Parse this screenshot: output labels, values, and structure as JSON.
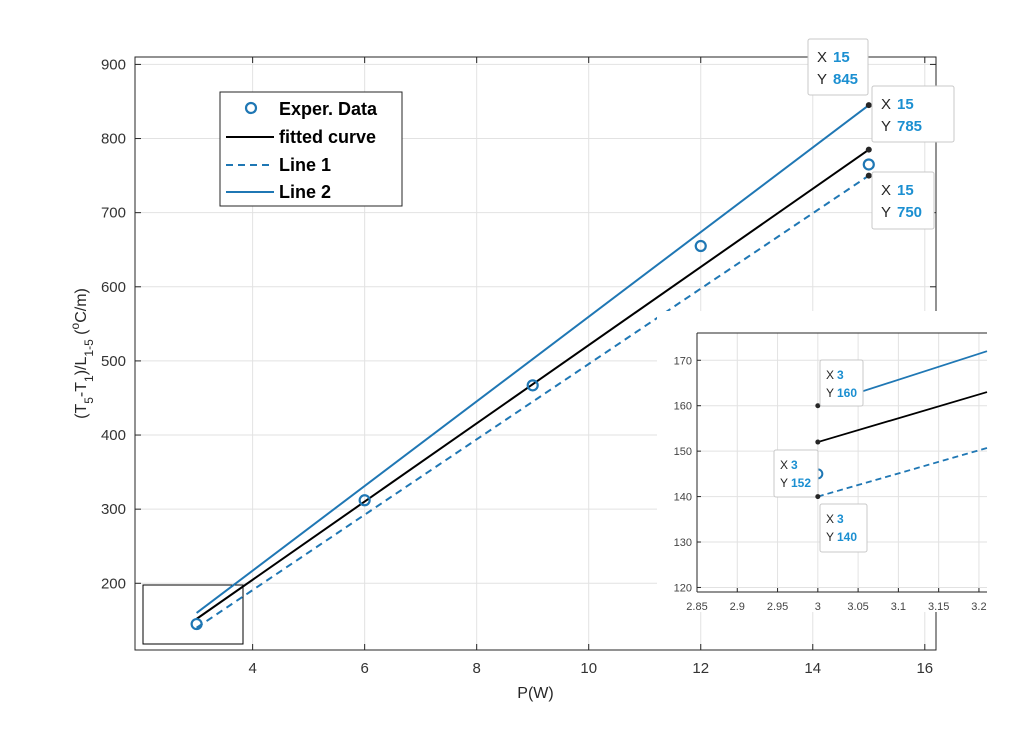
{
  "chart_data": [
    {
      "type": "line",
      "xlabel": "P(W)",
      "ylabel": "(T5-T1)/L1-5 (oC/m)",
      "xlim": [
        1.9,
        16.2
      ],
      "ylim": [
        110,
        910
      ],
      "xticks": [
        4,
        6,
        8,
        10,
        12,
        14,
        16
      ],
      "yticks": [
        200,
        300,
        400,
        500,
        600,
        700,
        800,
        900
      ],
      "grid": true,
      "legend_position": "top-left",
      "series": [
        {
          "name": "Exper. Data",
          "style": "markers",
          "color": "#1f77b4",
          "x": [
            3,
            6,
            9,
            12,
            15
          ],
          "y": [
            145,
            312,
            467,
            655,
            765
          ]
        },
        {
          "name": "fitted curve",
          "style": "solid",
          "color": "#000000",
          "x": [
            3,
            15
          ],
          "y": [
            152,
            785
          ]
        },
        {
          "name": "Line 1",
          "style": "dashed",
          "color": "#1f77b4",
          "x": [
            3,
            15
          ],
          "y": [
            140,
            750
          ]
        },
        {
          "name": "Line 2",
          "style": "solid",
          "color": "#1f77b4",
          "x": [
            3,
            15
          ],
          "y": [
            160,
            845
          ]
        }
      ],
      "datatips": [
        {
          "x_label": "X",
          "x_value": "15",
          "y_label": "Y",
          "y_value": "845",
          "x": 15,
          "y": 845
        },
        {
          "x_label": "X",
          "x_value": "15",
          "y_label": "Y",
          "y_value": "785",
          "x": 15,
          "y": 785
        },
        {
          "x_label": "X",
          "x_value": "15",
          "y_label": "Y",
          "y_value": "750",
          "x": 15,
          "y": 750
        }
      ]
    },
    {
      "type": "line",
      "role": "inset",
      "xlim": [
        2.85,
        3.21
      ],
      "ylim": [
        119,
        176
      ],
      "xticks": [
        2.85,
        2.9,
        2.95,
        3,
        3.05,
        3.1,
        3.15,
        3.2
      ],
      "xtick_labels": [
        "2.85",
        "2.9",
        "2.95",
        "3",
        "3.05",
        "3.1",
        "3.15",
        "3.2"
      ],
      "yticks": [
        120,
        130,
        140,
        150,
        160,
        170
      ],
      "grid": true,
      "series": [
        {
          "name": "Exper. Data",
          "style": "markers",
          "color": "#1f77b4",
          "x": [
            3
          ],
          "y": [
            145
          ]
        },
        {
          "name": "fitted curve",
          "style": "solid",
          "color": "#000000",
          "x": [
            3,
            3.21
          ],
          "y": [
            152,
            163
          ]
        },
        {
          "name": "Line 1",
          "style": "dashed",
          "color": "#1f77b4",
          "x": [
            3,
            3.21
          ],
          "y": [
            140,
            150.7
          ]
        },
        {
          "name": "Line 2",
          "style": "solid",
          "color": "#1f77b4",
          "x": [
            3,
            3.21
          ],
          "y": [
            160,
            172
          ]
        }
      ],
      "datatips": [
        {
          "x_label": "X",
          "x_value": "3",
          "y_label": "Y",
          "y_value": "160",
          "x": 3,
          "y": 160
        },
        {
          "x_label": "X",
          "x_value": "3",
          "y_label": "Y",
          "y_value": "152",
          "x": 3,
          "y": 152
        },
        {
          "x_label": "X",
          "x_value": "3",
          "y_label": "Y",
          "y_value": "140",
          "x": 3,
          "y": 140
        }
      ]
    }
  ]
}
